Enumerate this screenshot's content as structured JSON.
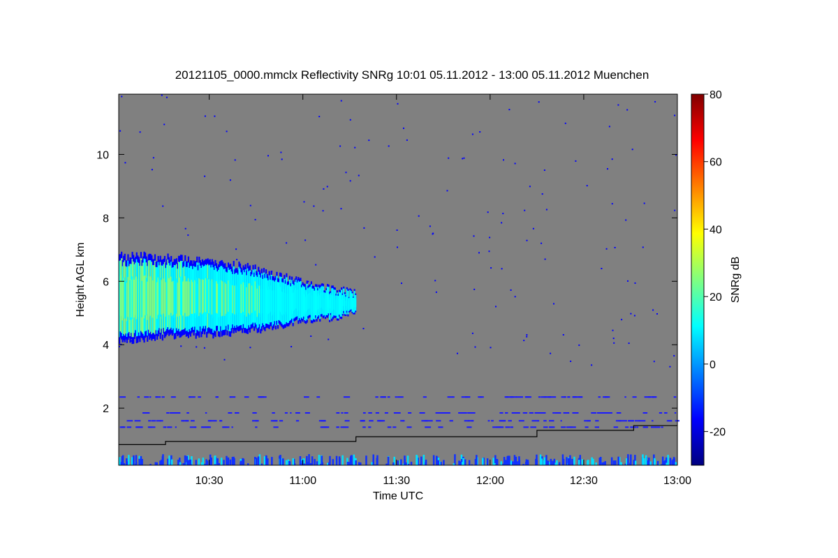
{
  "chart_data": {
    "type": "heatmap",
    "title": "20121105_0000.mmclx Reflectivity SNRg   10:01 05.11.2012 - 13:00 05.11.2012 Muenchen",
    "xlabel": "Time UTC",
    "ylabel": "Height AGL km",
    "colorbar_label": "SNRg dB",
    "x_range": [
      "10:01",
      "13:00"
    ],
    "x_ticks": [
      "10:30",
      "11:00",
      "11:30",
      "12:00",
      "12:30",
      "13:00"
    ],
    "y_range": [
      0.2,
      11.9
    ],
    "y_ticks": [
      2,
      4,
      6,
      8,
      10
    ],
    "colorbar_range": [
      -30,
      80
    ],
    "colorbar_ticks": [
      -20,
      0,
      20,
      40,
      60,
      80
    ],
    "background_color": "#808080",
    "colormap": [
      "#000080",
      "#0000ff",
      "#0080ff",
      "#00ffff",
      "#80ff80",
      "#ffff00",
      "#ff8000",
      "#ff0000",
      "#800000"
    ],
    "cloud_layer": {
      "time_start": "10:01",
      "time_end": "11:17",
      "top_km": [
        6.8,
        6.8,
        6.7,
        6.6,
        6.5,
        6.3,
        6.0,
        5.8,
        5.6
      ],
      "base_km": [
        4.1,
        4.2,
        4.3,
        4.3,
        4.4,
        4.5,
        4.7,
        4.8,
        5.0
      ],
      "peak_snr_db": 30
    },
    "boundary_line": [
      {
        "time": "10:01",
        "height_km": 0.85
      },
      {
        "time": "10:16",
        "height_km": 0.85
      },
      {
        "time": "10:16",
        "height_km": 0.95
      },
      {
        "time": "11:17",
        "height_km": 0.95
      },
      {
        "time": "11:17",
        "height_km": 1.1
      },
      {
        "time": "12:15",
        "height_km": 1.1
      },
      {
        "time": "12:15",
        "height_km": 1.3
      },
      {
        "time": "12:46",
        "height_km": 1.3
      },
      {
        "time": "12:46",
        "height_km": 1.45
      },
      {
        "time": "13:00",
        "height_km": 1.45
      }
    ]
  }
}
